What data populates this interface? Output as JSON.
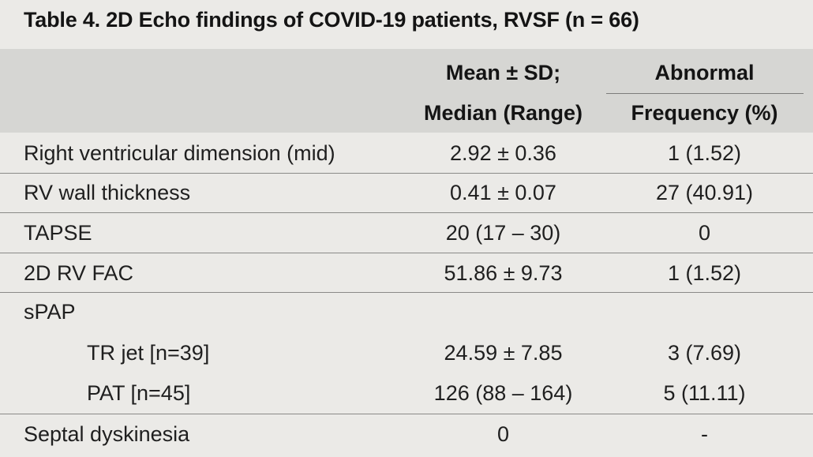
{
  "title": "Table 4. 2D Echo findings of COVID-19 patients, RVSF (n = 66)",
  "headers": {
    "col2_line1": "Mean ± SD;",
    "col2_line2": "Median (Range)",
    "col3_line1": "Abnormal",
    "col3_line2": "Frequency (%)"
  },
  "rows": [
    {
      "label": "Right ventricular dimension (mid)",
      "value": "2.92 ± 0.36",
      "abnormal": "1 (1.52)"
    },
    {
      "label": "RV wall thickness",
      "value": "0.41 ± 0.07",
      "abnormal": "27 (40.91)"
    },
    {
      "label": "TAPSE",
      "value": "20 (17 – 30)",
      "abnormal": "0"
    },
    {
      "label": "2D RV FAC",
      "value": "51.86 ± 9.73",
      "abnormal": "1 (1.52)"
    },
    {
      "label": "sPAP",
      "value": "",
      "abnormal": ""
    },
    {
      "label": "TR jet [n=39]",
      "value": "24.59 ± 7.85",
      "abnormal": "3 (7.69)"
    },
    {
      "label": "PAT [n=45]",
      "value": "126 (88 – 164)",
      "abnormal": "5 (11.11)"
    },
    {
      "label": "Septal dyskinesia",
      "value": "0",
      "abnormal": "-"
    }
  ]
}
